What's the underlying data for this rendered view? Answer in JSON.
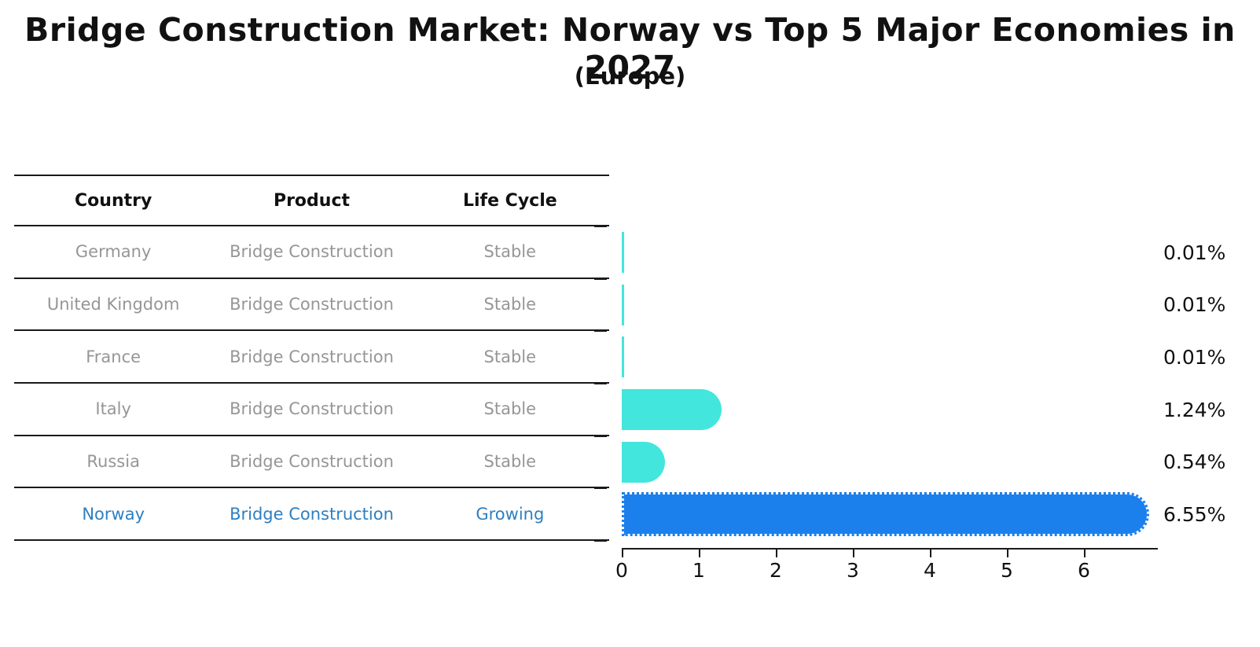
{
  "title": "Bridge Construction Market: Norway vs Top 5 Major Economies in 2027",
  "subtitle": "(Europe)",
  "table": {
    "headers": [
      "Country",
      "Product",
      "Life Cycle"
    ],
    "rows": [
      {
        "country": "Germany",
        "product": "Bridge Construction",
        "life_cycle": "Stable",
        "highlight": false
      },
      {
        "country": "United Kingdom",
        "product": "Bridge Construction",
        "life_cycle": "Stable",
        "highlight": false
      },
      {
        "country": "France",
        "product": "Bridge Construction",
        "life_cycle": "Stable",
        "highlight": false
      },
      {
        "country": "Italy",
        "product": "Bridge Construction",
        "life_cycle": "Stable",
        "highlight": false
      },
      {
        "country": "Russia",
        "product": "Bridge Construction",
        "life_cycle": "Stable",
        "highlight": false
      },
      {
        "country": "Norway",
        "product": "Bridge Construction",
        "life_cycle": "Growing",
        "highlight": true
      }
    ]
  },
  "chart_data": {
    "type": "bar",
    "orientation": "horizontal",
    "title": "Bridge Construction Market: Norway vs Top 5 Major Economies in 2027 (Europe)",
    "categories": [
      "Germany",
      "United Kingdom",
      "France",
      "Italy",
      "Russia",
      "Norway"
    ],
    "values": [
      0.01,
      0.01,
      0.01,
      1.24,
      0.54,
      6.55
    ],
    "value_labels": [
      "0.01%",
      "0.01%",
      "0.01%",
      "1.24%",
      "0.54%",
      "6.55%"
    ],
    "x_ticks": [
      0,
      1,
      2,
      3,
      4,
      5,
      6
    ],
    "xlim": [
      0,
      6.65
    ],
    "xlabel": "",
    "ylabel": "",
    "grid": false,
    "legend": false,
    "highlight_index": 5,
    "colors": {
      "stable_bar": "#43e6dc",
      "highlight_bar": "#1c80ec",
      "highlight_text": "#2e7fc1",
      "row_text": "#969696",
      "axis": "#1a1a1a"
    }
  }
}
